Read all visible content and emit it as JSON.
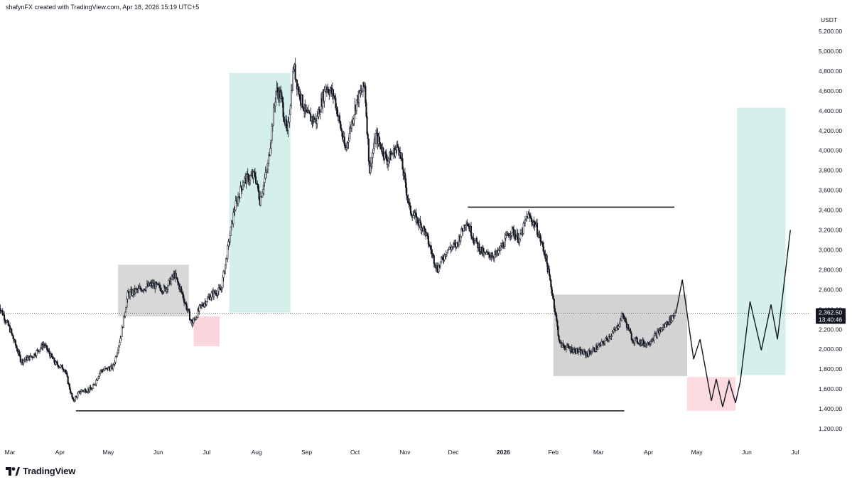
{
  "header": {
    "text": "shafynFX created with TradingView.com, Apr 18, 2026 15:19 UTC+5"
  },
  "brand": {
    "name": "TradingView",
    "logo_icon": "tradingview-logo-icon"
  },
  "chart_data": {
    "type": "candlestick",
    "currency_label": "USDT",
    "y_ticks": [
      "1,200.00",
      "1,400.00",
      "1,600.00",
      "1,800.00",
      "2,000.00",
      "2,200.00",
      "2,400.00",
      "2,600.00",
      "2,800.00",
      "3,000.00",
      "3,200.00",
      "3,400.00",
      "3,600.00",
      "3,800.00",
      "4,000.00",
      "4,200.00",
      "4,400.00",
      "4,600.00",
      "4,800.00",
      "5,000.00",
      "5,200.00"
    ],
    "ylim": [
      1200,
      5200
    ],
    "x_ticks": [
      {
        "label": "Mar",
        "bold": false
      },
      {
        "label": "Apr",
        "bold": false
      },
      {
        "label": "May",
        "bold": false
      },
      {
        "label": "Jun",
        "bold": false
      },
      {
        "label": "Jul",
        "bold": false
      },
      {
        "label": "Aug",
        "bold": false
      },
      {
        "label": "Sep",
        "bold": false
      },
      {
        "label": "Oct",
        "bold": false
      },
      {
        "label": "Nov",
        "bold": false
      },
      {
        "label": "Dec",
        "bold": false
      },
      {
        "label": "2026",
        "bold": true
      },
      {
        "label": "Feb",
        "bold": false
      },
      {
        "label": "Mar",
        "bold": false
      },
      {
        "label": "Apr",
        "bold": false
      },
      {
        "label": "May",
        "bold": false
      },
      {
        "label": "Jun",
        "bold": false
      },
      {
        "label": "Jul",
        "bold": false
      }
    ],
    "x_tick_dates": [
      "2025-03-01",
      "2025-04-01",
      "2025-05-01",
      "2025-06-01",
      "2025-07-01",
      "2025-08-01",
      "2025-09-01",
      "2025-10-01",
      "2025-11-01",
      "2025-12-01",
      "2026-01-01",
      "2026-02-01",
      "2026-03-01",
      "2026-04-01",
      "2026-05-01",
      "2026-06-01",
      "2026-07-01"
    ],
    "price_path": [
      [
        "2025-02-22",
        2450
      ],
      [
        "2025-03-01",
        2200
      ],
      [
        "2025-03-08",
        1880
      ],
      [
        "2025-03-15",
        1930
      ],
      [
        "2025-03-22",
        2050
      ],
      [
        "2025-03-29",
        1860
      ],
      [
        "2025-04-04",
        1800
      ],
      [
        "2025-04-09",
        1480
      ],
      [
        "2025-04-14",
        1580
      ],
      [
        "2025-04-21",
        1600
      ],
      [
        "2025-04-26",
        1780
      ],
      [
        "2025-05-04",
        1820
      ],
      [
        "2025-05-09",
        2150
      ],
      [
        "2025-05-13",
        2550
      ],
      [
        "2025-05-20",
        2600
      ],
      [
        "2025-05-28",
        2650
      ],
      [
        "2025-06-05",
        2600
      ],
      [
        "2025-06-11",
        2750
      ],
      [
        "2025-06-16",
        2550
      ],
      [
        "2025-06-22",
        2250
      ],
      [
        "2025-06-27",
        2420
      ],
      [
        "2025-07-04",
        2550
      ],
      [
        "2025-07-10",
        2600
      ],
      [
        "2025-07-13",
        2900
      ],
      [
        "2025-07-18",
        3400
      ],
      [
        "2025-07-24",
        3700
      ],
      [
        "2025-07-31",
        3750
      ],
      [
        "2025-08-03",
        3500
      ],
      [
        "2025-08-08",
        3850
      ],
      [
        "2025-08-13",
        4600
      ],
      [
        "2025-08-16",
        4550
      ],
      [
        "2025-08-20",
        4150
      ],
      [
        "2025-08-24",
        4850
      ],
      [
        "2025-08-27",
        4600
      ],
      [
        "2025-09-01",
        4350
      ],
      [
        "2025-09-07",
        4300
      ],
      [
        "2025-09-13",
        4650
      ],
      [
        "2025-09-18",
        4550
      ],
      [
        "2025-09-25",
        4000
      ],
      [
        "2025-10-02",
        4500
      ],
      [
        "2025-10-07",
        4650
      ],
      [
        "2025-10-10",
        3800
      ],
      [
        "2025-10-14",
        4150
      ],
      [
        "2025-10-21",
        3900
      ],
      [
        "2025-10-28",
        4050
      ],
      [
        "2025-11-04",
        3400
      ],
      [
        "2025-11-13",
        3200
      ],
      [
        "2025-11-21",
        2800
      ],
      [
        "2025-11-27",
        3000
      ],
      [
        "2025-12-03",
        3050
      ],
      [
        "2025-12-09",
        3300
      ],
      [
        "2025-12-14",
        3100
      ],
      [
        "2025-12-20",
        2950
      ],
      [
        "2025-12-28",
        2950
      ],
      [
        "2026-01-06",
        3200
      ],
      [
        "2026-01-11",
        3100
      ],
      [
        "2026-01-16",
        3350
      ],
      [
        "2026-01-21",
        3250
      ],
      [
        "2026-01-27",
        2950
      ],
      [
        "2026-02-01",
        2500
      ],
      [
        "2026-02-05",
        2050
      ],
      [
        "2026-02-12",
        2000
      ],
      [
        "2026-02-22",
        1950
      ],
      [
        "2026-03-03",
        2050
      ],
      [
        "2026-03-12",
        2200
      ],
      [
        "2026-03-16",
        2350
      ],
      [
        "2026-03-22",
        2100
      ],
      [
        "2026-03-31",
        2050
      ],
      [
        "2026-04-09",
        2200
      ],
      [
        "2026-04-18",
        2362.5
      ]
    ],
    "projection_path": [
      [
        "2026-04-18",
        2362.5
      ],
      [
        "2026-04-22",
        2700
      ],
      [
        "2026-04-29",
        1900
      ],
      [
        "2026-05-03",
        2100
      ],
      [
        "2026-05-10",
        1480
      ],
      [
        "2026-05-13",
        1700
      ],
      [
        "2026-05-17",
        1420
      ],
      [
        "2026-05-21",
        1680
      ],
      [
        "2026-05-25",
        1460
      ],
      [
        "2026-05-28",
        1680
      ],
      [
        "2026-06-03",
        2480
      ],
      [
        "2026-06-10",
        1990
      ],
      [
        "2026-06-16",
        2450
      ],
      [
        "2026-06-20",
        2100
      ],
      [
        "2026-06-28",
        3200
      ]
    ],
    "zones": [
      {
        "name": "grey-range-zone-1",
        "x0": "2025-05-07",
        "x1": "2025-06-20",
        "y0": 2330,
        "y1": 2850,
        "color": "#b8b8b8",
        "opacity": 0.55
      },
      {
        "name": "red-zone-1",
        "x0": "2025-06-23",
        "x1": "2025-07-09",
        "y0": 2030,
        "y1": 2330,
        "color": "#f7b6c1",
        "opacity": 0.55
      },
      {
        "name": "green-zone-1",
        "x0": "2025-07-15",
        "x1": "2025-08-22",
        "y0": 2370,
        "y1": 4780,
        "color": "#b2e2d9",
        "opacity": 0.55
      },
      {
        "name": "grey-range-zone-2",
        "x0": "2026-02-01",
        "x1": "2026-04-25",
        "y0": 1730,
        "y1": 2550,
        "color": "#a8a8a8",
        "opacity": 0.5
      },
      {
        "name": "red-zone-2",
        "x0": "2026-04-25",
        "x1": "2026-05-25",
        "y0": 1380,
        "y1": 1720,
        "color": "#f7b6c1",
        "opacity": 0.5
      },
      {
        "name": "green-zone-2",
        "x0": "2026-05-26",
        "x1": "2026-06-25",
        "y0": 1740,
        "y1": 4430,
        "color": "#b2e2d9",
        "opacity": 0.55
      }
    ],
    "levels": [
      {
        "name": "support-line",
        "x0": "2025-04-11",
        "x1": "2026-03-17",
        "y": 1380
      },
      {
        "name": "resistance-line",
        "x0": "2025-12-10",
        "x1": "2026-04-17",
        "y": 3430
      }
    ],
    "current_price": {
      "value": "2,362.50",
      "countdown": "13:40:46",
      "price": 2362.5
    }
  }
}
